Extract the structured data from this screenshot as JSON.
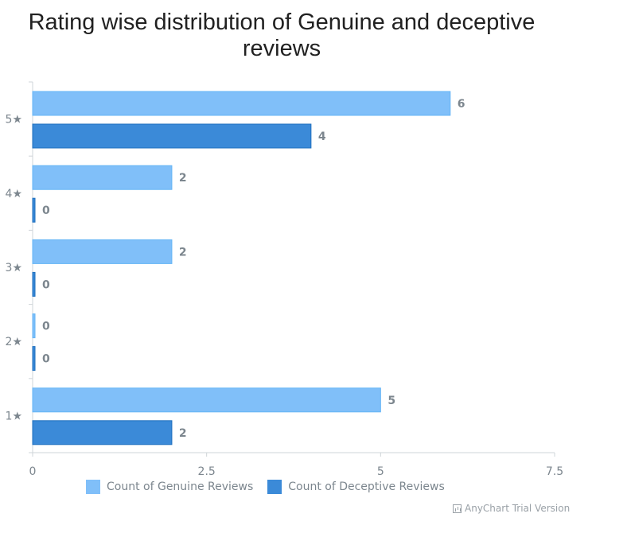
{
  "chart_data": {
    "type": "bar",
    "orientation": "horizontal",
    "title": "Rating wise distribution of Genuine and deceptive reviews",
    "categories": [
      "1★",
      "2★",
      "3★",
      "4★",
      "5★"
    ],
    "series": [
      {
        "name": "Count of Genuine Reviews",
        "values": [
          5,
          0,
          2,
          2,
          6
        ],
        "color": "#80bff9"
      },
      {
        "name": "Count of Deceptive Reviews",
        "values": [
          2,
          0,
          0,
          0,
          4
        ],
        "color": "#3b8ad8"
      }
    ],
    "xlim": [
      0,
      7.5
    ],
    "x_ticks": [
      "0",
      "2.5",
      "5",
      "7.5"
    ],
    "grid": false,
    "legend": "bottom"
  },
  "watermark": "AnyChart Trial Version"
}
